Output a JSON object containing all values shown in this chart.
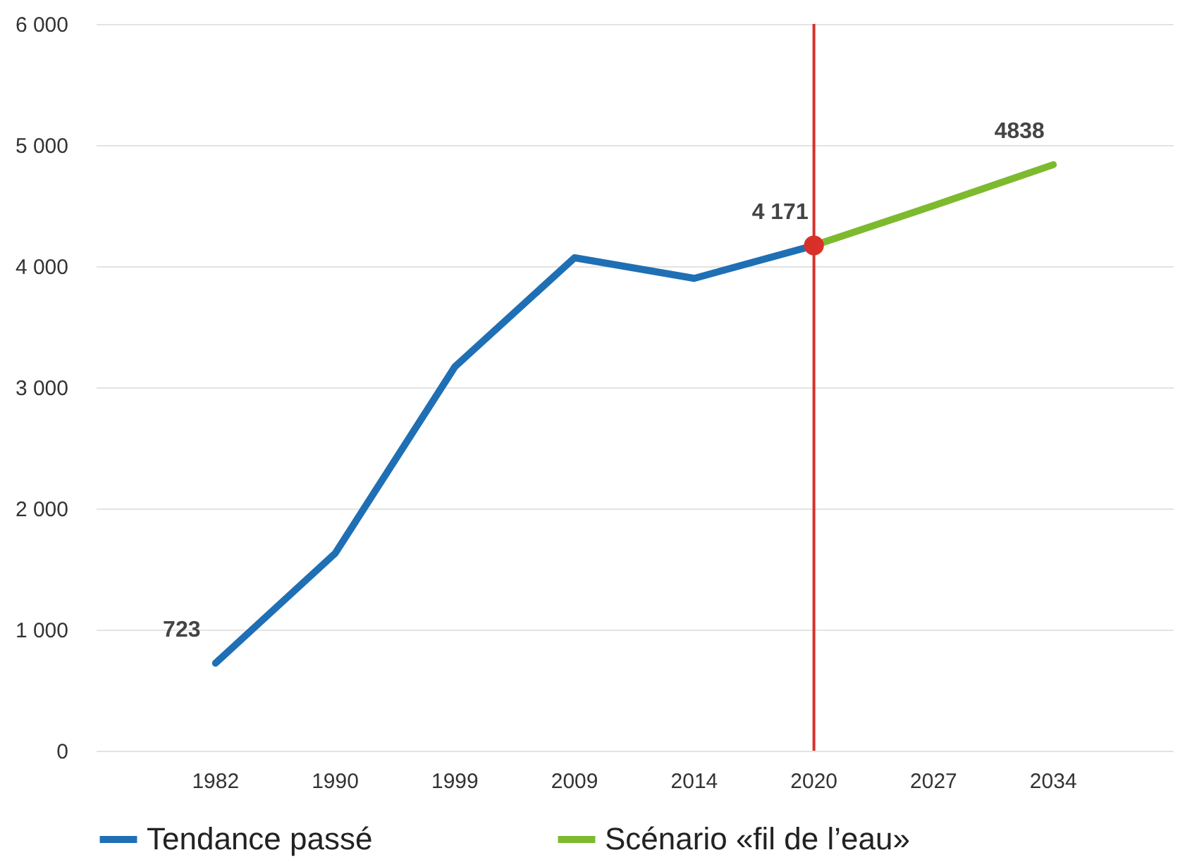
{
  "chart_data": {
    "type": "line",
    "categories": [
      "1982",
      "1990",
      "1999",
      "2009",
      "2014",
      "2020",
      "2027",
      "2034"
    ],
    "ylim": [
      0,
      6000
    ],
    "yticks": [
      0,
      {
        "value": 1000,
        "label": "1 000"
      },
      {
        "value": 2000,
        "label": "2 000"
      },
      {
        "value": 3000,
        "label": "3 000"
      },
      {
        "value": 4000,
        "label": "4 000"
      },
      {
        "value": 5000,
        "label": "5 000"
      },
      {
        "value": 6000,
        "label": "6 000"
      }
    ],
    "grid": "y",
    "legend": "bottom",
    "series": [
      {
        "name": "Tendance passé",
        "color": "#1f6fb5",
        "values": [
          723,
          1630,
          3170,
          4070,
          3900,
          4171,
          null,
          null
        ],
        "value_labels": [
          "723",
          null,
          null,
          null,
          null,
          "4 171",
          null,
          null
        ]
      },
      {
        "name": "Scénario «fil de l’eau»",
        "color": "#7dba2f",
        "values": [
          null,
          null,
          null,
          null,
          null,
          4171,
          4500,
          4838
        ],
        "value_labels": [
          null,
          null,
          null,
          null,
          null,
          null,
          null,
          "4838"
        ]
      },
      {
        "type": "scatter",
        "color": "#d9302a",
        "values": [
          null,
          null,
          null,
          null,
          null,
          4171,
          null,
          null
        ]
      }
    ],
    "ref_lines": [
      {
        "axis": "x",
        "value": "2020",
        "color": "#d9302a"
      }
    ]
  }
}
